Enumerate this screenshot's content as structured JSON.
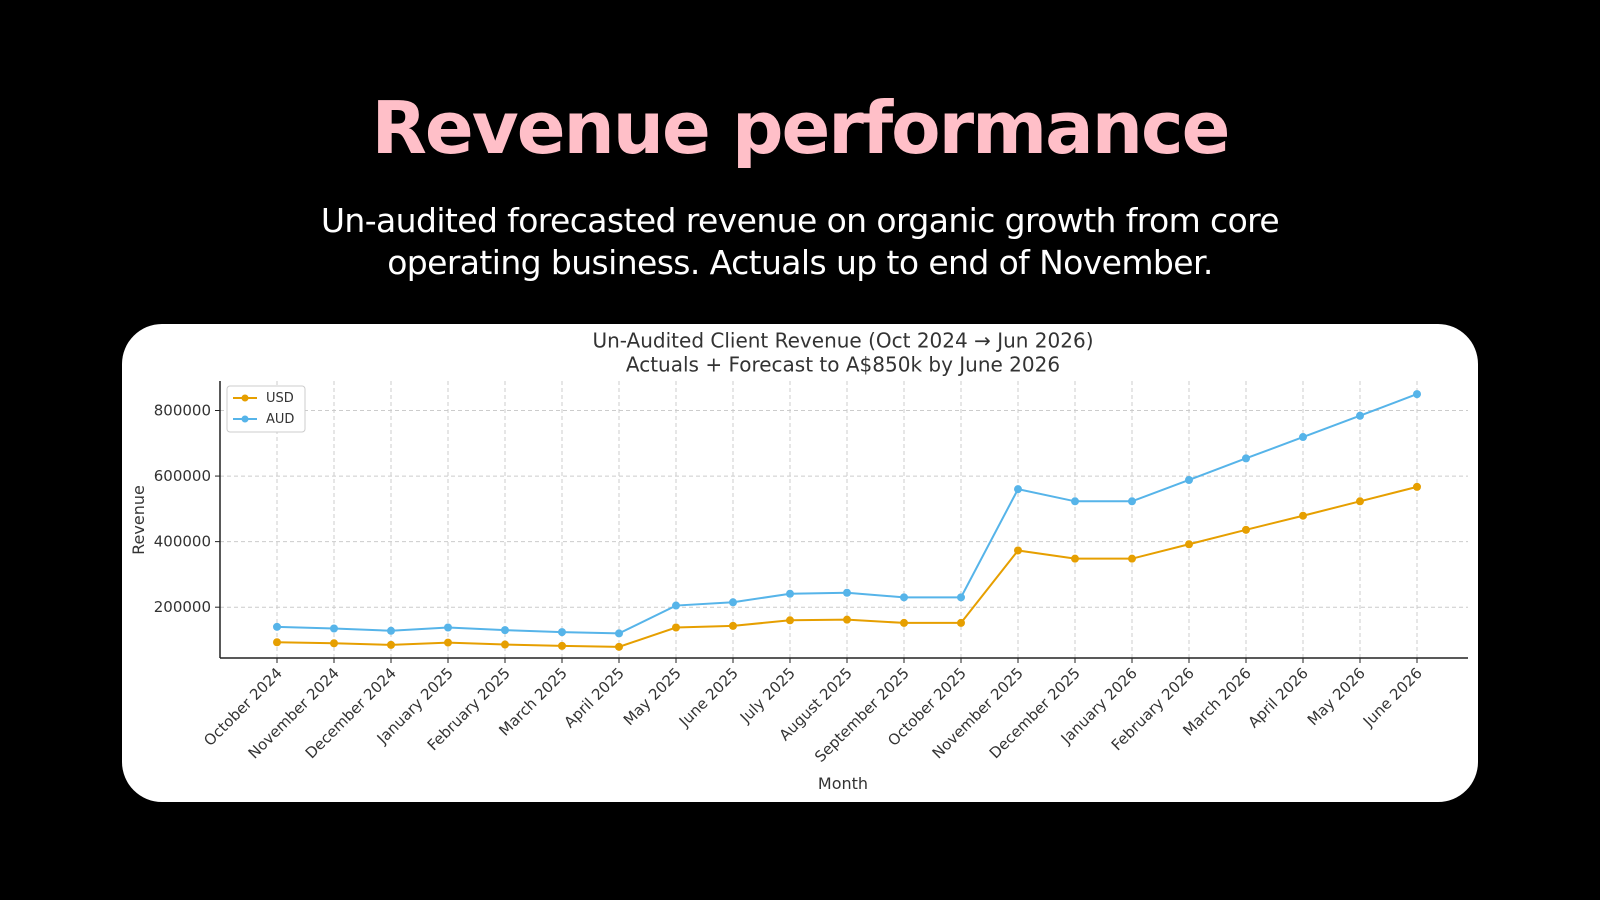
{
  "slide": {
    "title": "Revenue performance",
    "subtitle_line1": "Un-audited forecasted revenue on organic growth from core",
    "subtitle_line2": "operating business. Actuals up to end of November."
  },
  "colors": {
    "background": "#000000",
    "title": "#ffbfc8",
    "subtitle": "#ffffff",
    "card": "#ffffff"
  },
  "chart_data": {
    "type": "line",
    "title_line1": "Un-Audited Client Revenue (Oct 2024 → Jun 2026)",
    "title_line2": "Actuals + Forecast to A$850k by June 2026",
    "xlabel": "Month",
    "ylabel": "Revenue",
    "ylim": [
      45000,
      890000
    ],
    "yticks": [
      200000,
      400000,
      600000,
      800000
    ],
    "grid": true,
    "legend_position": "top-left",
    "categories": [
      "October 2024",
      "November 2024",
      "December 2024",
      "January 2025",
      "February 2025",
      "March 2025",
      "April 2025",
      "May 2025",
      "June 2025",
      "July 2025",
      "August 2025",
      "September 2025",
      "October 2025",
      "November 2025",
      "December 2025",
      "January 2026",
      "February 2026",
      "March 2026",
      "April 2026",
      "May 2026",
      "June 2026"
    ],
    "series": [
      {
        "name": "USD",
        "color": "#e69f00",
        "values": [
          93000,
          90000,
          85000,
          92000,
          86000,
          82000,
          79000,
          138000,
          143000,
          160000,
          162000,
          152000,
          152000,
          373000,
          348000,
          348000,
          392000,
          436000,
          479000,
          523000,
          567000
        ]
      },
      {
        "name": "AUD",
        "color": "#56b4e9",
        "values": [
          140000,
          135000,
          128000,
          138000,
          130000,
          124000,
          120000,
          205000,
          215000,
          241000,
          244000,
          230000,
          230000,
          560000,
          523000,
          523000,
          588000,
          654000,
          719000,
          784000,
          850000
        ]
      }
    ]
  }
}
